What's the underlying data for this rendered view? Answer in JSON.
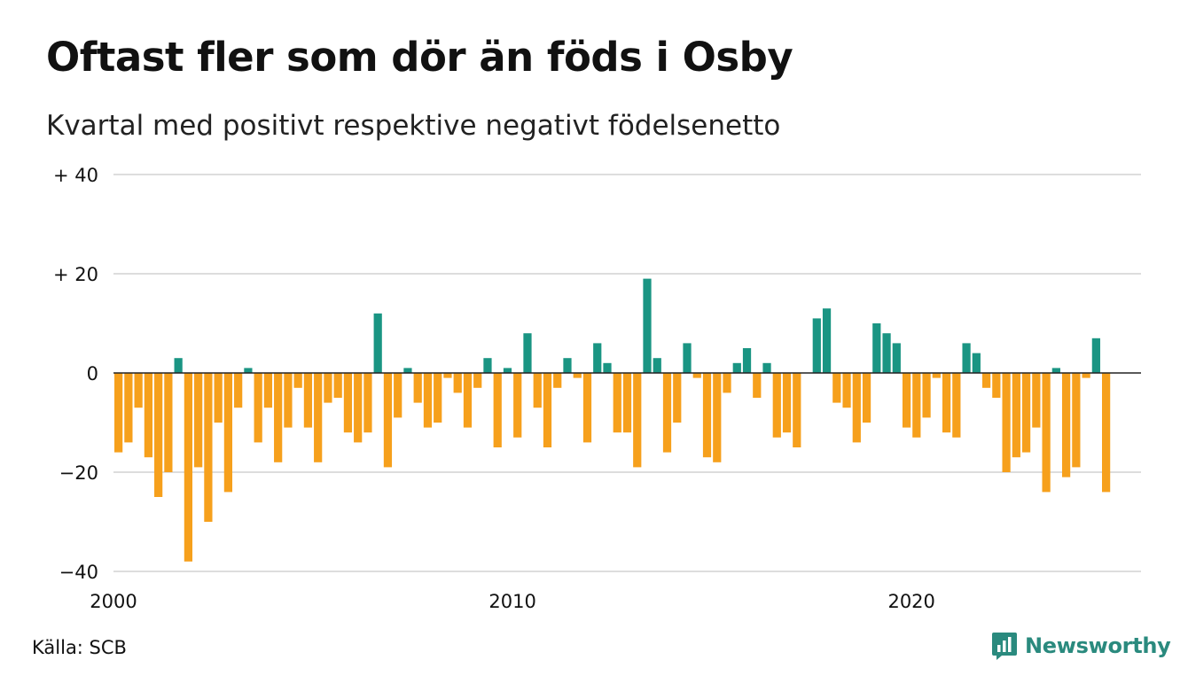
{
  "title": "Oftast fler som dör än föds i Osby",
  "subtitle": "Kvartal med positivt respektive negativt födelsenetto",
  "source": "Källa: SCB",
  "brand": {
    "name": "Newsworthy",
    "icon": "newsworthy-logo-icon"
  },
  "colors": {
    "positive": "#1a9583",
    "negative": "#f6a01c",
    "grid": "#dddddd",
    "zero_line": "#222222"
  },
  "chart_data": {
    "type": "bar",
    "title": "Oftast fler som dör än föds i Osby",
    "subtitle": "Kvartal med positivt respektive negativt födelsenetto",
    "x_start_year": 2000,
    "periods_per_year": 4,
    "x_range": [
      2000,
      2025.75
    ],
    "x_ticks": [
      {
        "value": 2000,
        "label": "2000"
      },
      {
        "value": 2010,
        "label": "2010"
      },
      {
        "value": 2020,
        "label": "2020"
      }
    ],
    "ylim": [
      -40,
      40
    ],
    "y_ticks": [
      {
        "value": 40,
        "label": "+ 40"
      },
      {
        "value": 20,
        "label": "+ 20"
      },
      {
        "value": 0,
        "label": "0"
      },
      {
        "value": -20,
        "label": "−20"
      },
      {
        "value": -40,
        "label": "−40"
      }
    ],
    "grid": true,
    "values": [
      -16,
      -14,
      -7,
      -17,
      -25,
      -20,
      3,
      -38,
      -19,
      -30,
      -10,
      -24,
      -7,
      1,
      -14,
      -7,
      -18,
      -11,
      -3,
      -11,
      -18,
      -6,
      -5,
      -12,
      -14,
      -12,
      12,
      -19,
      -9,
      1,
      -6,
      -11,
      -10,
      -1,
      -4,
      -11,
      -3,
      3,
      -15,
      1,
      -13,
      8,
      -7,
      -15,
      -3,
      3,
      -1,
      -14,
      6,
      2,
      -12,
      -12,
      -19,
      19,
      3,
      -16,
      -10,
      6,
      -1,
      -17,
      -18,
      -4,
      2,
      5,
      -5,
      2,
      -13,
      -12,
      -15,
      0,
      11,
      13,
      -6,
      -7,
      -14,
      -10,
      10,
      8,
      6,
      -11,
      -13,
      -9,
      -1,
      -12,
      -13,
      6,
      4,
      -3,
      -5,
      -20,
      -17,
      -16,
      -11,
      -24,
      1,
      -21,
      -19,
      -1,
      7,
      -24
    ]
  }
}
